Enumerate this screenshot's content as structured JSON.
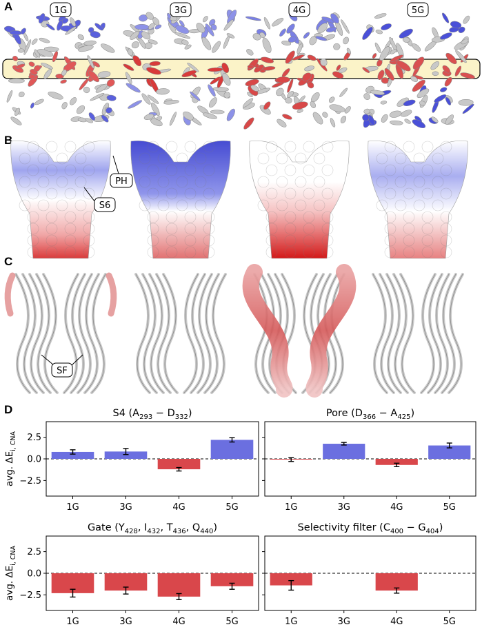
{
  "panel_letters": {
    "a": "A",
    "b": "B",
    "c": "C",
    "d": "D"
  },
  "structures": {
    "labels": [
      "1G",
      "3G",
      "4G",
      "5G"
    ],
    "callouts": {
      "ph": "PH",
      "s6": "S6",
      "sf": "SF"
    }
  },
  "colors": {
    "positive": "#6b6fe0",
    "negative": "#d9474b",
    "neutral": "#ffffff",
    "band_fill": "#fbf3c8",
    "pos_dark": "#2c32c8",
    "neg_dark": "#c8201f"
  },
  "shared_ylabel": "avg. ΔE",
  "ylabel_subscript": "i, CNA",
  "chart_data": [
    {
      "type": "bar",
      "title": "S4 (A",
      "title_parts": [
        "S4 (A",
        "293",
        " − D",
        "332",
        ")"
      ],
      "categories": [
        "1G",
        "3G",
        "4G",
        "5G"
      ],
      "values": [
        0.8,
        0.85,
        -1.2,
        2.2
      ],
      "errors": [
        0.25,
        0.35,
        0.2,
        0.25
      ],
      "ylim": [
        -4.3,
        4.3
      ],
      "yticks": [
        "2.5",
        "0.0",
        "−2.5"
      ],
      "ytick_values": [
        2.5,
        0.0,
        -2.5
      ],
      "reference_line": 0
    },
    {
      "type": "bar",
      "title": "Pore (D",
      "title_parts": [
        "Pore (D",
        "366",
        " − A",
        "425",
        ")"
      ],
      "categories": [
        "1G",
        "3G",
        "4G",
        "5G"
      ],
      "values": [
        -0.08,
        1.75,
        -0.7,
        1.55
      ],
      "errors": [
        0.22,
        0.15,
        0.2,
        0.28
      ],
      "ylim": [
        -4.3,
        4.3
      ],
      "yticks": [
        "2.5",
        "0.0",
        "−2.5"
      ],
      "ytick_values": [
        2.5,
        0.0,
        -2.5
      ],
      "reference_line": 0
    },
    {
      "type": "bar",
      "title": "Gate (Y",
      "title_parts": [
        "Gate (Y",
        "428",
        ", I",
        "432",
        ", T",
        "436",
        ", Q",
        "440",
        ")"
      ],
      "categories": [
        "1G",
        "3G",
        "4G",
        "5G"
      ],
      "values": [
        -2.3,
        -2.0,
        -2.7,
        -1.5
      ],
      "errors": [
        0.45,
        0.4,
        0.35,
        0.35
      ],
      "ylim": [
        -4.3,
        4.3
      ],
      "yticks": [
        "2.5",
        "0.0",
        "−2.5"
      ],
      "ytick_values": [
        2.5,
        0.0,
        -2.5
      ],
      "reference_line": 0
    },
    {
      "type": "bar",
      "title": "Selectivity filter (C",
      "title_parts": [
        "Selectivity filter (C",
        "400",
        " − G",
        "404",
        ")"
      ],
      "categories": [
        "1G",
        "3G",
        "4G",
        "5G"
      ],
      "values": [
        -1.4,
        0.0,
        -2.0,
        0.0
      ],
      "errors": [
        0.55,
        0.0,
        0.3,
        0.0
      ],
      "ylim": [
        -4.3,
        4.3
      ],
      "yticks": [
        "2.5",
        "0.0",
        "−2.5"
      ],
      "ytick_values": [
        2.5,
        0.0,
        -2.5
      ],
      "reference_line": 0
    }
  ]
}
